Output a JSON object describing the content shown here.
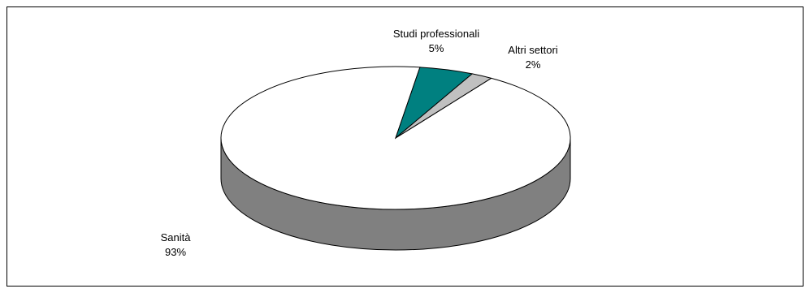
{
  "chart_data": {
    "type": "pie",
    "style": "3d",
    "title": "",
    "slices": [
      {
        "label": "Sanità",
        "value": 93,
        "display": "93%",
        "color": "#ffffff",
        "side_color": "#808080"
      },
      {
        "label": "Studi professionali",
        "value": 5,
        "display": "5%",
        "color": "#008080",
        "side_color": "#005a5a"
      },
      {
        "label": "Altri settori",
        "value": 2,
        "display": "2%",
        "color": "#c0c0c0",
        "side_color": "#8c8c8c"
      }
    ],
    "legend": "none"
  }
}
